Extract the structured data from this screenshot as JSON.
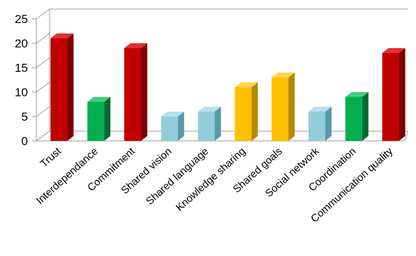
{
  "chart_data": {
    "type": "bar",
    "style": "3d-column",
    "title": "",
    "xlabel": "",
    "ylabel": "",
    "ylim": [
      0,
      25
    ],
    "yticks": [
      0,
      5,
      10,
      15,
      20,
      25
    ],
    "grid": false,
    "legend": "none",
    "categories": [
      "Trust",
      "Interdependance",
      "Commitment",
      "Shared vision",
      "Shared language",
      "Knowledge sharing",
      "Shared goals",
      "Social network",
      "Coordination",
      "Communication quality"
    ],
    "values": [
      21,
      8,
      19,
      5,
      6,
      11,
      13,
      6,
      9,
      18
    ],
    "colors": [
      "red",
      "green",
      "red",
      "blue",
      "blue",
      "yellow",
      "yellow",
      "blue",
      "green",
      "red"
    ]
  },
  "palette": {
    "red": {
      "front": "#c00000",
      "side": "#7d0000",
      "top": "#e03030"
    },
    "green": {
      "front": "#00b050",
      "side": "#006a30",
      "top": "#3fd07c"
    },
    "blue": {
      "front": "#92cddc",
      "side": "#5a97a8",
      "top": "#b8e0ea"
    },
    "yellow": {
      "front": "#ffc000",
      "side": "#b88700",
      "top": "#ffd54d"
    },
    "axis": "#9a9a9a"
  }
}
